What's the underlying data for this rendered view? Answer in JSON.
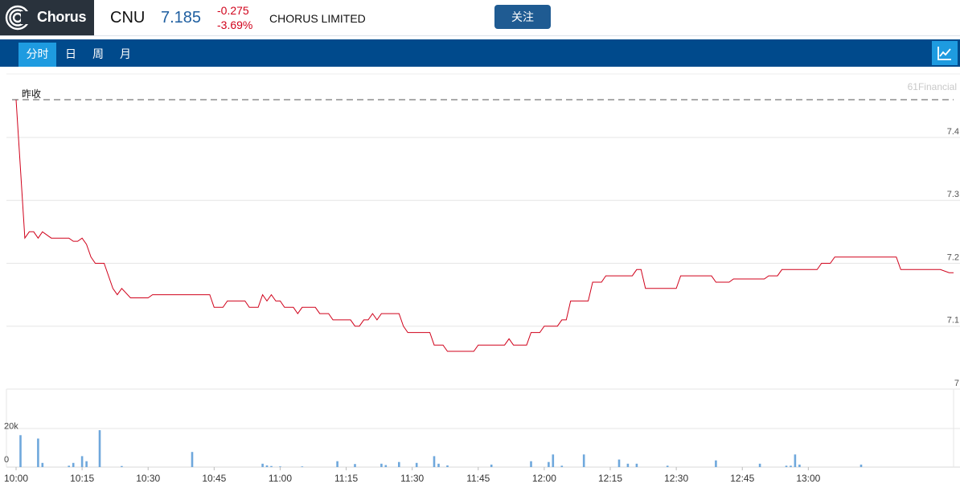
{
  "brand": {
    "name": "Chorus",
    "logo_icon": "chorus-rings-icon"
  },
  "quote": {
    "ticker": "CNU",
    "price": "7.185",
    "change": "-0.275",
    "change_pct": "-3.69%",
    "company": "CHORUS LIMITED",
    "follow_label": "关注",
    "colors": {
      "price": "#1f5fa0",
      "down": "#d0021b"
    }
  },
  "tabs": [
    {
      "label": "分时",
      "active": true
    },
    {
      "label": "日",
      "active": false
    },
    {
      "label": "周",
      "active": false
    },
    {
      "label": "月",
      "active": false
    }
  ],
  "chart_toggle_icon": "line-chart-icon",
  "chart_data": {
    "type": "line",
    "watermark": "61Financial",
    "prev_close_label": "昨收",
    "prev_close": 7.46,
    "ylim": [
      7.0,
      7.46
    ],
    "y_ticks": [
      "7.4",
      "7.3",
      "7.2",
      "7.1",
      "7"
    ],
    "y_tick_values": [
      7.4,
      7.3,
      7.2,
      7.1,
      7.0
    ],
    "x_labels": [
      "10:00",
      "10:15",
      "10:30",
      "10:45",
      "11:00",
      "11:15",
      "11:30",
      "11:45",
      "12:00",
      "12:15",
      "12:30",
      "12:45",
      "13:00"
    ],
    "series": [
      {
        "color": "#d0021b",
        "points": [
          [
            "10:00",
            7.46
          ],
          [
            "10:02",
            7.24
          ],
          [
            "10:03",
            7.25
          ],
          [
            "10:04",
            7.25
          ],
          [
            "10:05",
            7.24
          ],
          [
            "10:06",
            7.25
          ],
          [
            "10:08",
            7.24
          ],
          [
            "10:10",
            7.24
          ],
          [
            "10:12",
            7.24
          ],
          [
            "10:13",
            7.235
          ],
          [
            "10:14",
            7.235
          ],
          [
            "10:15",
            7.24
          ],
          [
            "10:16",
            7.23
          ],
          [
            "10:17",
            7.21
          ],
          [
            "10:18",
            7.2
          ],
          [
            "10:20",
            7.2
          ],
          [
            "10:22",
            7.16
          ],
          [
            "10:23",
            7.15
          ],
          [
            "10:24",
            7.16
          ],
          [
            "10:26",
            7.145
          ],
          [
            "10:28",
            7.145
          ],
          [
            "10:30",
            7.145
          ],
          [
            "10:31",
            7.15
          ],
          [
            "10:35",
            7.15
          ],
          [
            "10:40",
            7.15
          ],
          [
            "10:44",
            7.15
          ],
          [
            "10:45",
            7.13
          ],
          [
            "10:47",
            7.13
          ],
          [
            "10:48",
            7.14
          ],
          [
            "10:50",
            7.14
          ],
          [
            "10:52",
            7.14
          ],
          [
            "10:53",
            7.13
          ],
          [
            "10:55",
            7.13
          ],
          [
            "10:56",
            7.15
          ],
          [
            "10:57",
            7.14
          ],
          [
            "10:58",
            7.15
          ],
          [
            "10:59",
            7.14
          ],
          [
            "11:00",
            7.14
          ],
          [
            "11:01",
            7.13
          ],
          [
            "11:03",
            7.13
          ],
          [
            "11:04",
            7.12
          ],
          [
            "11:05",
            7.13
          ],
          [
            "11:08",
            7.13
          ],
          [
            "11:09",
            7.12
          ],
          [
            "11:11",
            7.12
          ],
          [
            "11:12",
            7.11
          ],
          [
            "11:16",
            7.11
          ],
          [
            "11:17",
            7.1
          ],
          [
            "11:18",
            7.1
          ],
          [
            "11:19",
            7.11
          ],
          [
            "11:20",
            7.11
          ],
          [
            "11:21",
            7.12
          ],
          [
            "11:22",
            7.11
          ],
          [
            "11:23",
            7.12
          ],
          [
            "11:27",
            7.12
          ],
          [
            "11:28",
            7.1
          ],
          [
            "11:29",
            7.09
          ],
          [
            "11:34",
            7.09
          ],
          [
            "11:35",
            7.07
          ],
          [
            "11:37",
            7.07
          ],
          [
            "11:38",
            7.06
          ],
          [
            "11:44",
            7.06
          ],
          [
            "11:45",
            7.07
          ],
          [
            "11:51",
            7.07
          ],
          [
            "11:52",
            7.08
          ],
          [
            "11:53",
            7.07
          ],
          [
            "11:56",
            7.07
          ],
          [
            "11:57",
            7.09
          ],
          [
            "11:59",
            7.09
          ],
          [
            "12:00",
            7.1
          ],
          [
            "12:03",
            7.1
          ],
          [
            "12:04",
            7.11
          ],
          [
            "12:05",
            7.11
          ],
          [
            "12:06",
            7.14
          ],
          [
            "12:10",
            7.14
          ],
          [
            "12:11",
            7.17
          ],
          [
            "12:13",
            7.17
          ],
          [
            "12:14",
            7.18
          ],
          [
            "12:20",
            7.18
          ],
          [
            "12:21",
            7.19
          ],
          [
            "12:22",
            7.19
          ],
          [
            "12:23",
            7.16
          ],
          [
            "12:30",
            7.16
          ],
          [
            "12:31",
            7.18
          ],
          [
            "12:38",
            7.18
          ],
          [
            "12:39",
            7.17
          ],
          [
            "12:42",
            7.17
          ],
          [
            "12:43",
            7.175
          ],
          [
            "12:50",
            7.175
          ],
          [
            "12:51",
            7.18
          ],
          [
            "12:53",
            7.18
          ],
          [
            "12:54",
            7.19
          ],
          [
            "13:02",
            7.19
          ],
          [
            "13:03",
            7.2
          ],
          [
            "13:05",
            7.2
          ],
          [
            "13:06",
            7.21
          ],
          [
            "13:20",
            7.21
          ],
          [
            "13:21",
            7.19
          ],
          [
            "13:30",
            7.19
          ],
          [
            "13:32",
            7.185
          ],
          [
            "13:33",
            7.185
          ]
        ]
      }
    ],
    "volume": {
      "color": "#6fa8dc",
      "tick_labels": [
        "20k",
        "0"
      ],
      "tick_values": [
        20000,
        0
      ],
      "ylim": [
        0,
        23000
      ],
      "bars": [
        [
          "10:01",
          19000
        ],
        [
          "10:05",
          17000
        ],
        [
          "10:06",
          2500
        ],
        [
          "10:12",
          800
        ],
        [
          "10:13",
          2500
        ],
        [
          "10:15",
          6500
        ],
        [
          "10:16",
          3500
        ],
        [
          "10:19",
          22000
        ],
        [
          "10:24",
          600
        ],
        [
          "10:40",
          9000
        ],
        [
          "10:56",
          2000
        ],
        [
          "10:57",
          1000
        ],
        [
          "10:58",
          600
        ],
        [
          "11:00",
          400
        ],
        [
          "11:05",
          400
        ],
        [
          "11:13",
          3500
        ],
        [
          "11:17",
          1800
        ],
        [
          "11:23",
          2000
        ],
        [
          "11:24",
          1200
        ],
        [
          "11:27",
          3000
        ],
        [
          "11:31",
          2500
        ],
        [
          "11:35",
          6500
        ],
        [
          "11:36",
          2000
        ],
        [
          "11:38",
          1000
        ],
        [
          "11:48",
          1500
        ],
        [
          "11:57",
          3500
        ],
        [
          "12:01",
          3000
        ],
        [
          "12:02",
          7500
        ],
        [
          "12:04",
          800
        ],
        [
          "12:09",
          7500
        ],
        [
          "12:17",
          4500
        ],
        [
          "12:19",
          2000
        ],
        [
          "12:21",
          2000
        ],
        [
          "12:28",
          800
        ],
        [
          "12:39",
          4000
        ],
        [
          "12:49",
          2000
        ],
        [
          "12:55",
          800
        ],
        [
          "12:56",
          800
        ],
        [
          "12:57",
          7500
        ],
        [
          "12:58",
          1500
        ],
        [
          "13:12",
          1500
        ]
      ]
    },
    "grid": true
  }
}
